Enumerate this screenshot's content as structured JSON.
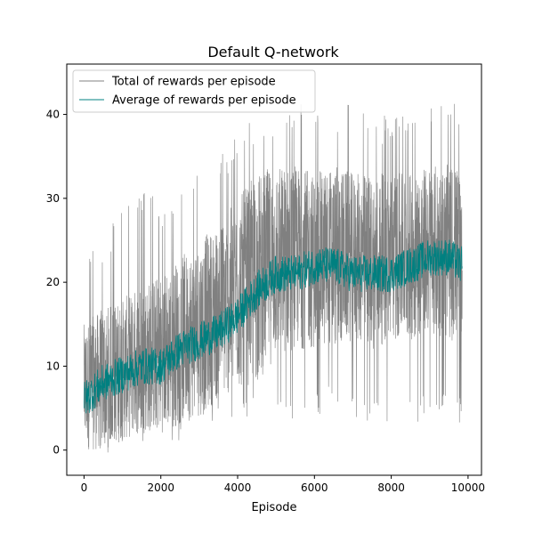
{
  "chart_data": {
    "type": "line",
    "title": "Default Q-network",
    "xlabel": "Episode",
    "ylabel": "",
    "xlim": [
      -450,
      10350
    ],
    "ylim": [
      -3.0,
      46.0
    ],
    "x_ticks": [
      0,
      2000,
      4000,
      6000,
      8000,
      10000
    ],
    "y_ticks": [
      0,
      10,
      20,
      30,
      40
    ],
    "x_tick_labels": [
      "0",
      "2000",
      "4000",
      "6000",
      "8000",
      "10000"
    ],
    "y_tick_labels": [
      "0",
      "10",
      "20",
      "30",
      "40"
    ],
    "grid": false,
    "legend_position": "upper-left",
    "x_range": [
      0,
      9850
    ],
    "series": [
      {
        "name": "Total of rewards per episode",
        "color": "#808080",
        "style": "noisy band",
        "x": [
          0,
          500,
          1000,
          1500,
          2000,
          2500,
          3000,
          3500,
          4000,
          4500,
          5000,
          5500,
          6000,
          6500,
          7000,
          7500,
          8000,
          8500,
          9000,
          9500,
          9850
        ],
        "y_typical_low": [
          0,
          0,
          1,
          2,
          2,
          3,
          4,
          6,
          7,
          8,
          11,
          12,
          12,
          12,
          13,
          12,
          13,
          13,
          14,
          13,
          13
        ],
        "y_typical_high": [
          15,
          17,
          18,
          20,
          21,
          23,
          25,
          27,
          30,
          33,
          34,
          34,
          33,
          34,
          33,
          33,
          33,
          33,
          34,
          34,
          34
        ],
        "y_min": [
          -1,
          -1,
          0,
          0,
          1,
          1,
          2,
          2,
          4,
          4,
          3,
          3,
          4,
          5,
          4,
          3,
          3,
          3,
          4,
          4,
          3
        ],
        "y_max": [
          25,
          25,
          30,
          31,
          30,
          31,
          33,
          35,
          38,
          40,
          41,
          41,
          43,
          40,
          43,
          40,
          40,
          41,
          41,
          41,
          42
        ]
      },
      {
        "name": "Average of rewards per episode",
        "color": "#008080",
        "x": [
          0,
          500,
          1000,
          1500,
          2000,
          2500,
          3000,
          3500,
          4000,
          4500,
          5000,
          5500,
          6000,
          6500,
          7000,
          7500,
          8000,
          8500,
          9000,
          9500,
          9850
        ],
        "y": [
          6,
          8,
          9,
          10,
          10,
          12,
          13,
          14,
          16,
          19,
          21,
          21,
          22,
          22,
          21,
          21,
          21,
          22,
          23,
          23,
          22
        ]
      }
    ]
  }
}
